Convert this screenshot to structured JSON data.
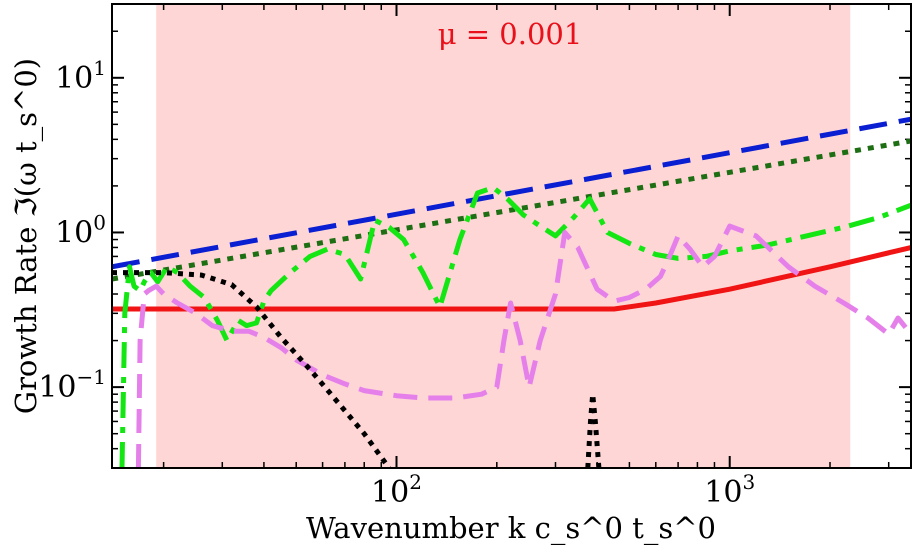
{
  "chart_data": {
    "type": "line",
    "xlabel": "Wavenumber  k c_s^0 t_s^0",
    "ylabel": "Growth Rate  ℑ(ω t_s^0)",
    "xscale": "log",
    "yscale": "log",
    "xlim": [
      14,
      3500
    ],
    "ylim": [
      0.03,
      30
    ],
    "x_ticks": [
      {
        "value": 100,
        "label": "10",
        "exp": "2"
      },
      {
        "value": 1000,
        "label": "10",
        "exp": "3"
      }
    ],
    "y_ticks": [
      {
        "value": 0.1,
        "label": "10",
        "exp": "−1"
      },
      {
        "value": 1,
        "label": "10",
        "exp": "0"
      },
      {
        "value": 10,
        "label": "10",
        "exp": "1"
      }
    ],
    "shaded_region": {
      "x_range": [
        19,
        2300
      ],
      "color": "#ffd6d6"
    },
    "annotation": {
      "text": "μ = 0.001",
      "color": "#e8101a"
    },
    "series": [
      {
        "name": "red-solid",
        "color": "#f01414",
        "dash": "",
        "x": [
          14,
          20,
          40,
          100,
          200,
          300,
          450,
          600,
          1000,
          2000,
          3500
        ],
        "y": [
          0.32,
          0.32,
          0.32,
          0.32,
          0.32,
          0.32,
          0.32,
          0.35,
          0.43,
          0.6,
          0.8
        ]
      },
      {
        "name": "blue-dashed",
        "color": "#0a1ed2",
        "dash": "28,12",
        "x": [
          14,
          3500
        ],
        "y": [
          0.6,
          5.4
        ]
      },
      {
        "name": "darkgreen-dotted",
        "color": "#1e6e14",
        "dash": "6,7",
        "x": [
          14,
          3500
        ],
        "y": [
          0.5,
          3.9
        ]
      },
      {
        "name": "lime-dashdot",
        "color": "#14e614",
        "dash": "26,9,6,9",
        "x": [
          15,
          15.3,
          15.8,
          16.3,
          17,
          17.5,
          18.3,
          19.2,
          20.5,
          22,
          24,
          26.5,
          29,
          31,
          33.5,
          35.5,
          38,
          40,
          42,
          48,
          55,
          62,
          70,
          78,
          86,
          95,
          105,
          120,
          135,
          155,
          175,
          195,
          215,
          240,
          270,
          300,
          340,
          380,
          430,
          500,
          600,
          700,
          850,
          1000,
          1300,
          1700,
          2200,
          2800,
          3500
        ],
        "y": [
          0.03,
          0.3,
          0.6,
          0.45,
          0.42,
          0.48,
          0.55,
          0.48,
          0.6,
          0.55,
          0.45,
          0.38,
          0.27,
          0.2,
          0.27,
          0.25,
          0.26,
          0.36,
          0.42,
          0.55,
          0.7,
          0.78,
          0.72,
          0.5,
          1.2,
          1.08,
          0.9,
          0.55,
          0.33,
          0.9,
          1.8,
          1.95,
          1.65,
          1.3,
          1.1,
          0.95,
          1.25,
          1.65,
          1.0,
          0.85,
          0.72,
          0.68,
          0.7,
          0.76,
          0.83,
          0.95,
          1.08,
          1.25,
          1.5
        ]
      },
      {
        "name": "violet-dashed",
        "color": "#e580ea",
        "dash": "24,11",
        "x": [
          16.8,
          17,
          17.5,
          18,
          19,
          20,
          22,
          25,
          28,
          32,
          36,
          40,
          45,
          50,
          60,
          70,
          80,
          100,
          120,
          150,
          180,
          200,
          210,
          220,
          235,
          250,
          270,
          300,
          320,
          350,
          400,
          450,
          500,
          560,
          620,
          660,
          700,
          760,
          830,
          900,
          1000,
          1200,
          1500,
          1800,
          2200,
          2600,
          3000,
          3200,
          3500
        ],
        "y": [
          0.03,
          0.2,
          0.4,
          0.42,
          0.45,
          0.4,
          0.35,
          0.3,
          0.25,
          0.23,
          0.23,
          0.21,
          0.18,
          0.15,
          0.12,
          0.105,
          0.095,
          0.088,
          0.085,
          0.085,
          0.09,
          0.1,
          0.2,
          0.35,
          0.2,
          0.1,
          0.2,
          0.4,
          1.0,
          0.8,
          0.43,
          0.36,
          0.38,
          0.43,
          0.52,
          0.7,
          0.95,
          0.78,
          0.6,
          0.7,
          1.1,
          0.95,
          0.6,
          0.45,
          0.35,
          0.28,
          0.22,
          0.28,
          0.22
        ]
      },
      {
        "name": "black-dotted-left",
        "color": "#000000",
        "dash": "5,6",
        "x": [
          14,
          20,
          26,
          32,
          38,
          45,
          55,
          65,
          80,
          95
        ],
        "y": [
          0.55,
          0.55,
          0.53,
          0.46,
          0.33,
          0.21,
          0.13,
          0.085,
          0.05,
          0.03
        ]
      },
      {
        "name": "black-dotted-spike",
        "color": "#000000",
        "dash": "5,6",
        "x": [
          375,
          382,
          388,
          395,
          405
        ],
        "y": [
          0.03,
          0.06,
          0.09,
          0.06,
          0.03
        ]
      }
    ]
  }
}
